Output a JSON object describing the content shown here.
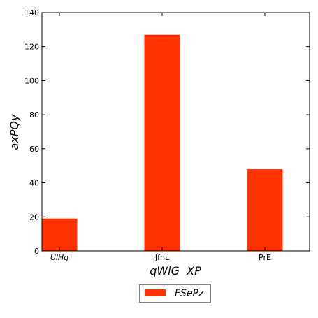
{
  "chart_data": {
    "type": "bar",
    "categories": [
      "UlHg",
      "JfhL",
      "PrE"
    ],
    "series": [
      {
        "name": "FSePz",
        "values": [
          19,
          127,
          48
        ],
        "color": "#ff3300"
      }
    ],
    "xlabel": "qWiG  XP",
    "ylabel": "axPQy",
    "ylim": [
      0,
      140
    ],
    "yticks": [
      0,
      20,
      40,
      60,
      80,
      100,
      120,
      140
    ],
    "grid": false,
    "legend": "bottom-center"
  }
}
